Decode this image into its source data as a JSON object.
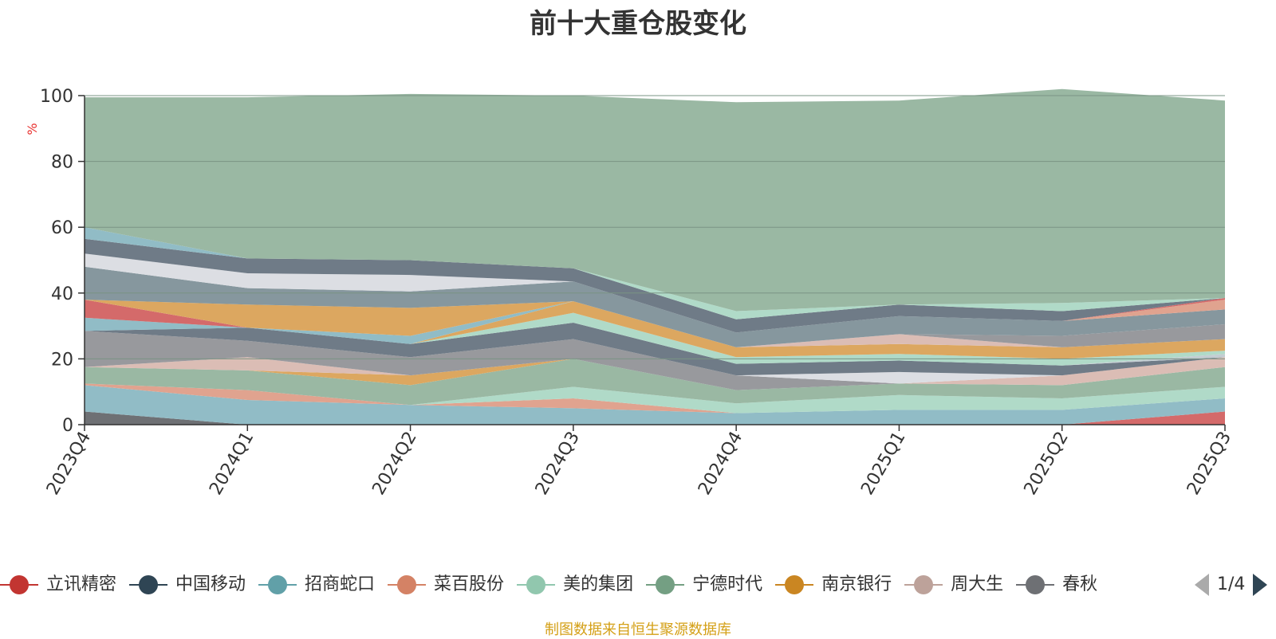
{
  "chart_data": {
    "type": "area",
    "stacked": true,
    "title": "前十大重仓股变化",
    "ylabel": "%",
    "ylim": [
      0,
      100
    ],
    "yticks": [
      0,
      20,
      40,
      60,
      80,
      100
    ],
    "grid": true,
    "categories": [
      "2023Q4",
      "2024Q1",
      "2024Q2",
      "2024Q3",
      "2024Q4",
      "2025Q1",
      "2025Q2",
      "2025Q3"
    ],
    "legend_position": "bottom",
    "series": [
      {
        "color": "#6e7074",
        "values": [
          4,
          0,
          0,
          0,
          0,
          0,
          0,
          0
        ]
      },
      {
        "name": "立讯精密",
        "color": "#d46a6a",
        "values": [
          0,
          0,
          0,
          0,
          0,
          0,
          0,
          4
        ]
      },
      {
        "name": "招商蛇口",
        "color": "#91bcc6",
        "values": [
          8,
          7.5,
          6,
          5,
          3.5,
          4.5,
          4.5,
          4
        ]
      },
      {
        "name": "菜百股份",
        "color": "#e0a38f",
        "values": [
          0.5,
          3,
          0,
          3,
          0,
          0,
          0,
          0
        ]
      },
      {
        "name": "美的集团",
        "color": "#b0dac8",
        "values": [
          0,
          0,
          0,
          3.5,
          3,
          4.5,
          3.5,
          3.5
        ]
      },
      {
        "name": "宁德时代",
        "color": "#9ab8a3",
        "values": [
          5,
          6,
          6,
          8.5,
          4,
          3.5,
          4,
          6
        ]
      },
      {
        "name": "南京银行",
        "color": "#dca760",
        "values": [
          0,
          0,
          3,
          0,
          0,
          0,
          0,
          0
        ]
      },
      {
        "name": "周大生",
        "color": "#dbbdb5",
        "values": [
          0,
          4,
          0,
          0,
          0,
          0,
          3,
          3
        ]
      },
      {
        "color": "#98999d",
        "values": [
          11,
          5,
          5.5,
          6,
          4.5,
          0,
          0,
          0
        ]
      },
      {
        "color": "#dcdee3",
        "values": [
          0,
          0,
          0,
          0,
          0,
          3.5,
          0,
          0
        ]
      },
      {
        "color": "#6f7b87",
        "values": [
          0,
          4,
          4,
          5,
          3.5,
          3.5,
          3,
          0
        ]
      },
      {
        "color": "#c3cdd2",
        "values": [
          0,
          0,
          0,
          0,
          0,
          0,
          0,
          1
        ]
      },
      {
        "color": "#b0dac8",
        "values": [
          0,
          0,
          0,
          3,
          2,
          2,
          2,
          1
        ]
      },
      {
        "color": "#dca760",
        "values": [
          0,
          0,
          0,
          3.5,
          3,
          3,
          3.5,
          3.5
        ]
      },
      {
        "color": "#91bcc6",
        "values": [
          4,
          0,
          2.5,
          0,
          0,
          0,
          0,
          0
        ]
      },
      {
        "color": "#d46a6a",
        "values": [
          5.5,
          0,
          0,
          0,
          0,
          0,
          0,
          0
        ]
      },
      {
        "color": "#dbbdb5",
        "values": [
          0,
          0,
          0,
          0,
          0,
          3,
          0,
          0
        ]
      },
      {
        "color": "#98999d",
        "values": [
          0,
          0,
          0,
          0,
          0,
          0,
          3.5,
          4.5
        ]
      },
      {
        "color": "#dca760",
        "values": [
          0,
          7,
          8.5,
          0,
          0,
          0,
          0,
          0
        ]
      },
      {
        "color": "#86979e",
        "values": [
          10,
          5,
          5,
          6,
          4.5,
          5.5,
          4.5,
          4.5
        ]
      },
      {
        "color": "#e0a38f",
        "values": [
          0,
          0,
          0,
          0,
          0,
          0,
          0,
          3
        ]
      },
      {
        "color": "#d46a6a",
        "values": [
          0,
          0,
          0,
          0,
          0,
          0,
          0,
          0.5
        ]
      },
      {
        "color": "#dcdee3",
        "values": [
          4,
          4.5,
          5,
          0,
          0,
          0,
          0,
          0
        ]
      },
      {
        "color": "#6f7b87",
        "values": [
          4.5,
          4.5,
          4.5,
          4,
          4,
          3.5,
          3,
          0
        ]
      },
      {
        "color": "#b0dac8",
        "values": [
          0,
          0,
          0,
          0,
          2.5,
          0,
          2.5,
          0
        ]
      },
      {
        "color": "#91bcc6",
        "values": [
          3.5,
          0,
          0,
          0,
          0,
          0,
          0,
          0
        ]
      },
      {
        "color": "#9ab8a3",
        "values": [
          39.5,
          49,
          50.5,
          52.5,
          63.5,
          62,
          65,
          60
        ]
      }
    ]
  },
  "legend": {
    "items": [
      {
        "label": "立讯精密",
        "color": "#c23531"
      },
      {
        "label": "中国移动",
        "color": "#2f4554"
      },
      {
        "label": "招商蛇口",
        "color": "#61a0a8"
      },
      {
        "label": "菜百股份",
        "color": "#d48265"
      },
      {
        "label": "美的集团",
        "color": "#91c7ae"
      },
      {
        "label": "宁德时代",
        "color": "#749f83"
      },
      {
        "label": "南京银行",
        "color": "#ca8622"
      },
      {
        "label": "周大生",
        "color": "#bda29a"
      },
      {
        "label": "春秋",
        "color": "#6e7074"
      }
    ],
    "page": "1/4"
  },
  "footer": "制图数据来自恒生聚源数据库",
  "colors": {
    "axis": "#333333",
    "grid": "#7a9484",
    "ylabel": "#e8312f",
    "footer": "#d4a017"
  }
}
